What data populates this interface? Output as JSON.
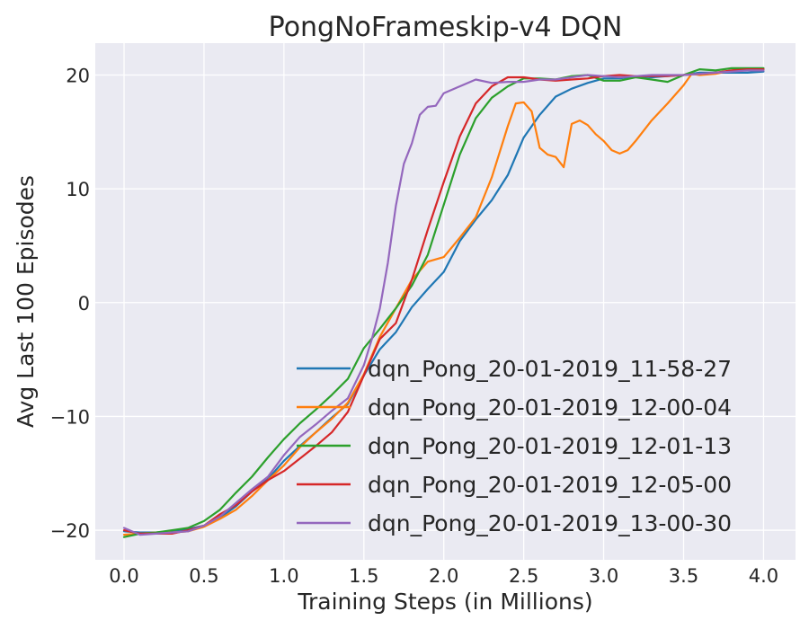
{
  "chart_data": {
    "type": "line",
    "title": "PongNoFrameskip-v4 DQN",
    "xlabel": "Training Steps (in Millions)",
    "ylabel": "Avg Last 100 Episodes",
    "xlim": [
      -0.18,
      4.2
    ],
    "ylim": [
      -22.6,
      22.8
    ],
    "xticks": [
      0.0,
      0.5,
      1.0,
      1.5,
      2.0,
      2.5,
      3.0,
      3.5,
      4.0
    ],
    "xtick_labels": [
      "0.0",
      "0.5",
      "1.0",
      "1.5",
      "2.0",
      "2.5",
      "3.0",
      "3.5",
      "4.0"
    ],
    "yticks": [
      -20,
      -10,
      0,
      10,
      20
    ],
    "ytick_labels": [
      "−20",
      "−10",
      "0",
      "10",
      "20"
    ],
    "grid": true,
    "background": "#eaeaf2",
    "legend_position": "lower-right",
    "series": [
      {
        "name": "dqn_Pong_20-01-2019_11-58-27",
        "color": "#1f77b4",
        "x": [
          0.0,
          0.1,
          0.2,
          0.3,
          0.4,
          0.5,
          0.6,
          0.7,
          0.8,
          0.9,
          1.0,
          1.1,
          1.2,
          1.3,
          1.4,
          1.5,
          1.6,
          1.7,
          1.8,
          1.9,
          2.0,
          2.1,
          2.2,
          2.3,
          2.4,
          2.5,
          2.6,
          2.7,
          2.8,
          2.9,
          3.0,
          3.1,
          3.2,
          3.3,
          3.4,
          3.5,
          3.6,
          3.7,
          3.8,
          3.9,
          4.0
        ],
        "y": [
          -20.1,
          -20.2,
          -20.2,
          -20.1,
          -19.9,
          -19.6,
          -18.9,
          -17.9,
          -16.6,
          -15.5,
          -13.9,
          -12.6,
          -11.4,
          -10.1,
          -8.9,
          -6.4,
          -4.1,
          -2.6,
          -0.4,
          1.2,
          2.7,
          5.4,
          7.3,
          9.0,
          11.2,
          14.5,
          16.5,
          18.1,
          18.8,
          19.3,
          19.7,
          19.7,
          19.9,
          19.8,
          19.9,
          20.0,
          20.2,
          20.2,
          20.2,
          20.2,
          20.3
        ]
      },
      {
        "name": "dqn_Pong_20-01-2019_12-00-04",
        "color": "#ff7f0e",
        "x": [
          0.0,
          0.1,
          0.2,
          0.3,
          0.4,
          0.5,
          0.6,
          0.7,
          0.8,
          0.9,
          1.0,
          1.1,
          1.2,
          1.3,
          1.4,
          1.5,
          1.6,
          1.7,
          1.8,
          1.9,
          2.0,
          2.1,
          2.2,
          2.3,
          2.4,
          2.45,
          2.5,
          2.55,
          2.6,
          2.65,
          2.7,
          2.75,
          2.8,
          2.85,
          2.9,
          2.95,
          3.0,
          3.05,
          3.1,
          3.15,
          3.2,
          3.3,
          3.4,
          3.5,
          3.55,
          3.6,
          3.7,
          3.8,
          3.9,
          4.0
        ],
        "y": [
          -20.4,
          -20.3,
          -20.2,
          -20.2,
          -20.1,
          -19.7,
          -19.0,
          -18.2,
          -17.0,
          -15.6,
          -14.3,
          -12.7,
          -11.4,
          -10.2,
          -8.8,
          -6.3,
          -3.0,
          -0.5,
          2.0,
          3.6,
          4.0,
          5.7,
          7.5,
          11.0,
          15.5,
          17.5,
          17.6,
          16.8,
          13.6,
          13.0,
          12.8,
          11.9,
          15.7,
          16.0,
          15.6,
          14.8,
          14.2,
          13.4,
          13.1,
          13.4,
          14.2,
          16.0,
          17.5,
          19.1,
          20.1,
          20.0,
          20.1,
          20.4,
          20.5,
          20.5
        ]
      },
      {
        "name": "dqn_Pong_20-01-2019_12-01-13",
        "color": "#2ca02c",
        "x": [
          0.0,
          0.1,
          0.2,
          0.3,
          0.4,
          0.5,
          0.6,
          0.7,
          0.8,
          0.9,
          1.0,
          1.1,
          1.2,
          1.3,
          1.4,
          1.5,
          1.6,
          1.7,
          1.8,
          1.9,
          2.0,
          2.1,
          2.2,
          2.3,
          2.4,
          2.5,
          2.6,
          2.7,
          2.8,
          2.9,
          3.0,
          3.1,
          3.2,
          3.3,
          3.4,
          3.5,
          3.6,
          3.7,
          3.8,
          3.9,
          4.0
        ],
        "y": [
          -20.6,
          -20.3,
          -20.2,
          -20.0,
          -19.8,
          -19.2,
          -18.2,
          -16.7,
          -15.3,
          -13.6,
          -12.0,
          -10.6,
          -9.4,
          -8.1,
          -6.7,
          -4.0,
          -2.3,
          -0.5,
          1.5,
          4.2,
          8.6,
          13.0,
          16.2,
          18.0,
          19.0,
          19.7,
          19.7,
          19.6,
          19.9,
          20.0,
          19.5,
          19.5,
          19.8,
          19.6,
          19.4,
          20.0,
          20.5,
          20.4,
          20.6,
          20.6,
          20.6
        ]
      },
      {
        "name": "dqn_Pong_20-01-2019_12-05-00",
        "color": "#d62728",
        "x": [
          0.0,
          0.1,
          0.2,
          0.3,
          0.4,
          0.5,
          0.6,
          0.7,
          0.8,
          0.9,
          1.0,
          1.1,
          1.2,
          1.3,
          1.4,
          1.5,
          1.6,
          1.7,
          1.8,
          1.9,
          2.0,
          2.1,
          2.2,
          2.3,
          2.4,
          2.5,
          2.6,
          2.7,
          2.8,
          2.9,
          3.0,
          3.1,
          3.2,
          3.3,
          3.4,
          3.5,
          3.6,
          3.7,
          3.8,
          3.9,
          4.0
        ],
        "y": [
          -20.0,
          -20.3,
          -20.3,
          -20.3,
          -20.0,
          -19.6,
          -18.6,
          -17.8,
          -16.6,
          -15.6,
          -14.8,
          -13.7,
          -12.6,
          -11.4,
          -9.6,
          -6.4,
          -3.2,
          -1.8,
          2.0,
          6.4,
          10.6,
          14.6,
          17.5,
          19.0,
          19.8,
          19.8,
          19.6,
          19.5,
          19.6,
          19.7,
          19.9,
          20.0,
          19.9,
          19.9,
          19.9,
          20.0,
          20.1,
          20.2,
          20.4,
          20.5,
          20.5
        ]
      },
      {
        "name": "dqn_Pong_20-01-2019_13-00-30",
        "color": "#9467bd",
        "x": [
          0.0,
          0.1,
          0.2,
          0.3,
          0.4,
          0.5,
          0.6,
          0.7,
          0.8,
          0.9,
          1.0,
          1.1,
          1.2,
          1.3,
          1.4,
          1.5,
          1.55,
          1.6,
          1.65,
          1.7,
          1.75,
          1.8,
          1.85,
          1.9,
          1.95,
          2.0,
          2.1,
          2.2,
          2.3,
          2.4,
          2.5,
          2.6,
          2.7,
          2.8,
          2.9,
          3.0,
          3.1,
          3.2,
          3.3,
          3.4,
          3.5,
          3.6,
          3.7,
          3.8,
          3.9,
          4.0
        ],
        "y": [
          -19.8,
          -20.4,
          -20.3,
          -20.2,
          -20.1,
          -19.6,
          -18.8,
          -17.6,
          -16.4,
          -15.3,
          -13.4,
          -11.8,
          -10.7,
          -9.5,
          -8.4,
          -5.5,
          -3.2,
          -0.5,
          3.5,
          8.5,
          12.2,
          14.0,
          16.5,
          17.2,
          17.3,
          18.4,
          19.0,
          19.6,
          19.3,
          19.4,
          19.4,
          19.6,
          19.6,
          19.8,
          20.0,
          19.9,
          19.8,
          19.9,
          20.0,
          20.0,
          20.0,
          20.1,
          20.2,
          20.3,
          20.4,
          20.4
        ]
      }
    ]
  }
}
